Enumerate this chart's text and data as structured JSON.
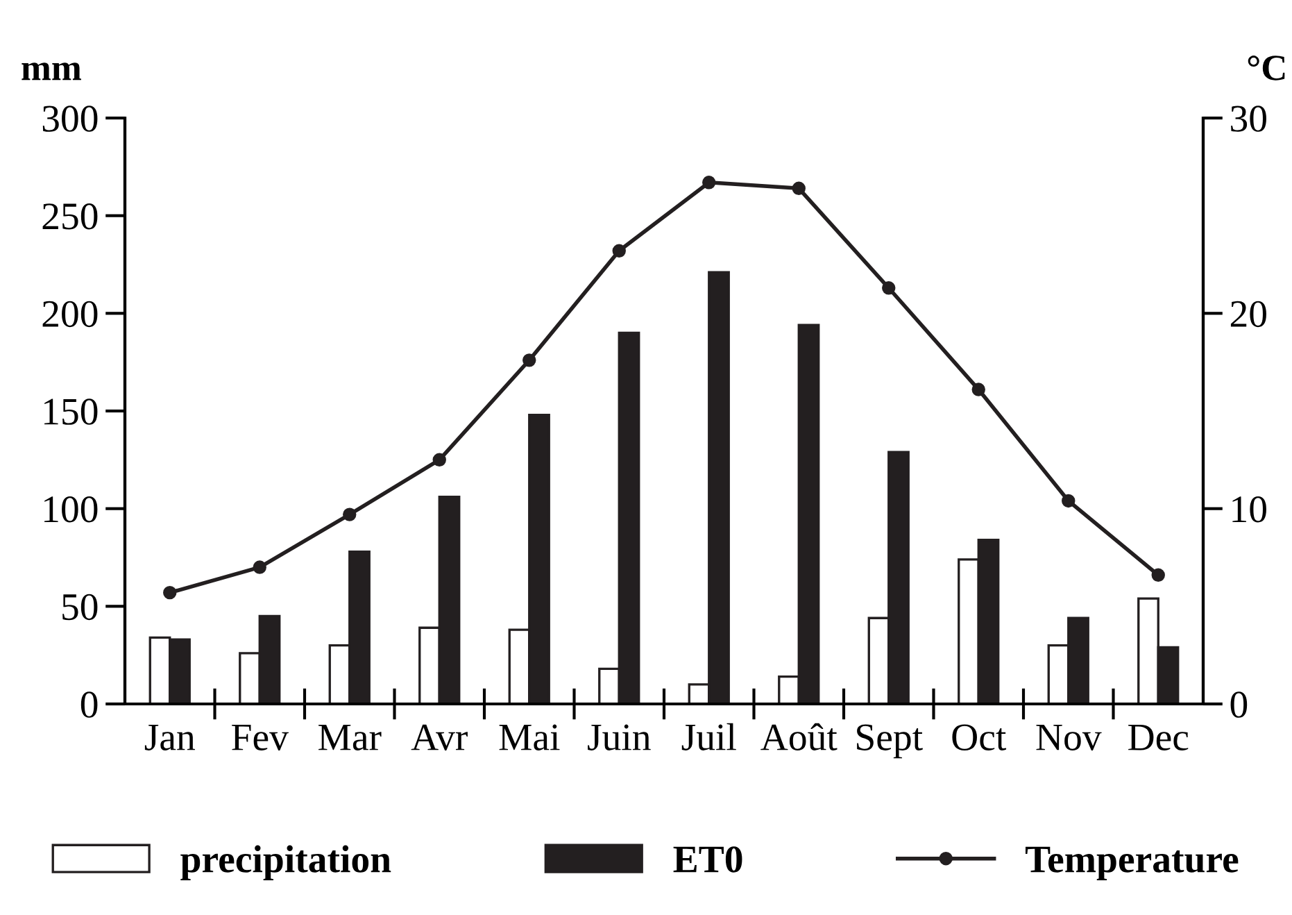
{
  "chart_data": {
    "type": "bar",
    "ylabel": "mm",
    "y2label": "°C",
    "categories": [
      "Jan",
      "Fev",
      "Mar",
      "Avr",
      "Mai",
      "Juin",
      "Juil",
      "Août",
      "Sept",
      "Oct",
      "Nov",
      "Dec"
    ],
    "series": [
      {
        "name": "precipitation",
        "color": "#ffffff",
        "values": [
          34,
          26,
          30,
          39,
          38,
          18,
          10,
          14,
          44,
          74,
          30,
          54
        ]
      },
      {
        "name": "ET0",
        "color": "#231f20",
        "values": [
          33,
          45,
          78,
          106,
          148,
          190,
          221,
          194,
          129,
          84,
          44,
          29
        ]
      },
      {
        "name": "Temperature",
        "type": "line",
        "axis": "y2",
        "color": "#231f20",
        "marker": "circle",
        "values": [
          5.7,
          7.0,
          9.7,
          12.5,
          17.6,
          23.2,
          26.7,
          26.4,
          21.3,
          16.1,
          10.4,
          6.6
        ]
      }
    ],
    "ylim": [
      0,
      300
    ],
    "yticks": [
      0,
      50,
      100,
      150,
      200,
      250,
      300
    ],
    "y2lim": [
      0,
      30
    ],
    "y2ticks": [
      0,
      10,
      20,
      30
    ],
    "grid": false,
    "legend": "bottom"
  }
}
